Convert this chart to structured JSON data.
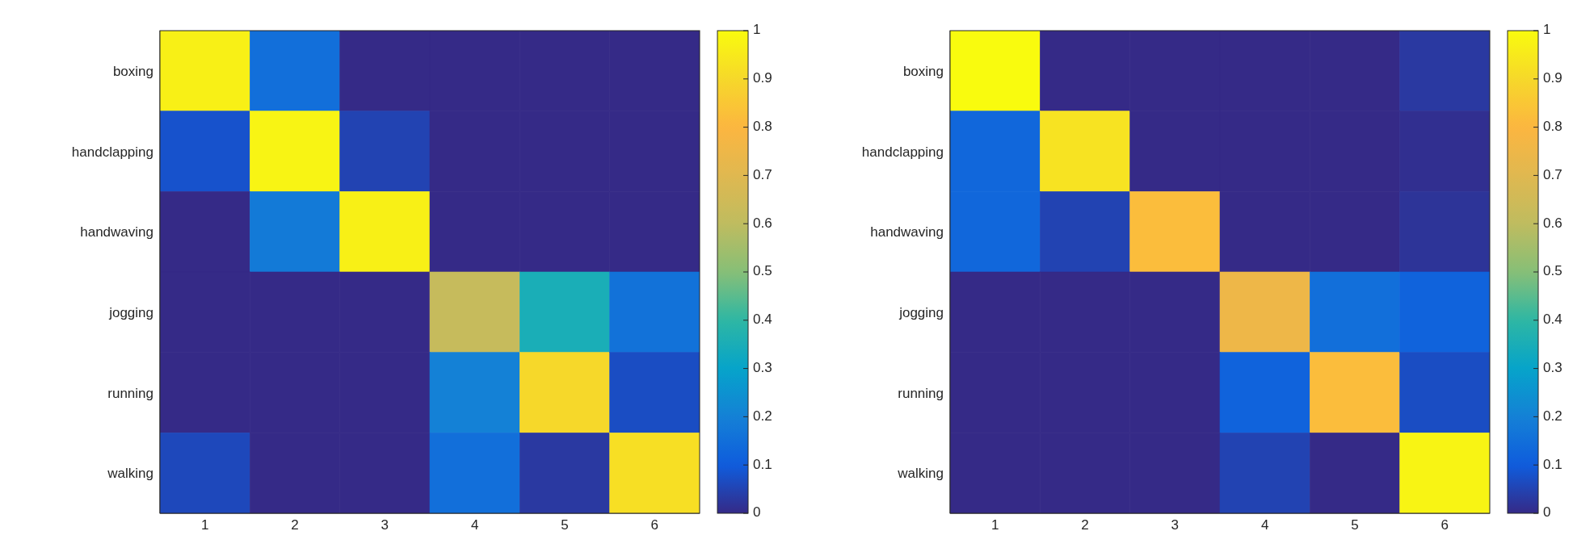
{
  "chart_data": [
    {
      "type": "heatmap",
      "categories": [
        "1",
        "2",
        "3",
        "4",
        "5",
        "6"
      ],
      "y_categories": [
        "boxing",
        "handclapping",
        "handwaving",
        "jogging",
        "running",
        "walking"
      ],
      "cells": [
        [
          0.97,
          0.15,
          0,
          0,
          0,
          0
        ],
        [
          0.08,
          0.98,
          0.05,
          0,
          0,
          0
        ],
        [
          0,
          0.18,
          0.97,
          0,
          0,
          0
        ],
        [
          0,
          0,
          0,
          0.62,
          0.35,
          0.16
        ],
        [
          0,
          0,
          0,
          0.2,
          0.9,
          0.07
        ],
        [
          0.06,
          0,
          0,
          0.15,
          0.03,
          0.92
        ]
      ],
      "clim": [
        0,
        1
      ],
      "cticks": [
        0,
        0.1,
        0.2,
        0.3,
        0.4,
        0.5,
        0.6,
        0.7,
        0.8,
        0.9,
        1
      ]
    },
    {
      "type": "heatmap",
      "categories": [
        "1",
        "2",
        "3",
        "4",
        "5",
        "6"
      ],
      "y_categories": [
        "boxing",
        "handclapping",
        "handwaving",
        "jogging",
        "running",
        "walking"
      ],
      "cells": [
        [
          1,
          0,
          0,
          0,
          0,
          0.03
        ],
        [
          0.13,
          0.93,
          0,
          0,
          0,
          0.01
        ],
        [
          0.13,
          0.05,
          0.82,
          0,
          0,
          0.02
        ],
        [
          0,
          0,
          0,
          0.75,
          0.15,
          0.12
        ],
        [
          0,
          0,
          0,
          0.12,
          0.82,
          0.07
        ],
        [
          0,
          0,
          0,
          0.05,
          0,
          0.98
        ]
      ],
      "clim": [
        0,
        1
      ],
      "cticks": [
        0,
        0.1,
        0.2,
        0.3,
        0.4,
        0.5,
        0.6,
        0.7,
        0.8,
        0.9,
        1
      ]
    }
  ]
}
